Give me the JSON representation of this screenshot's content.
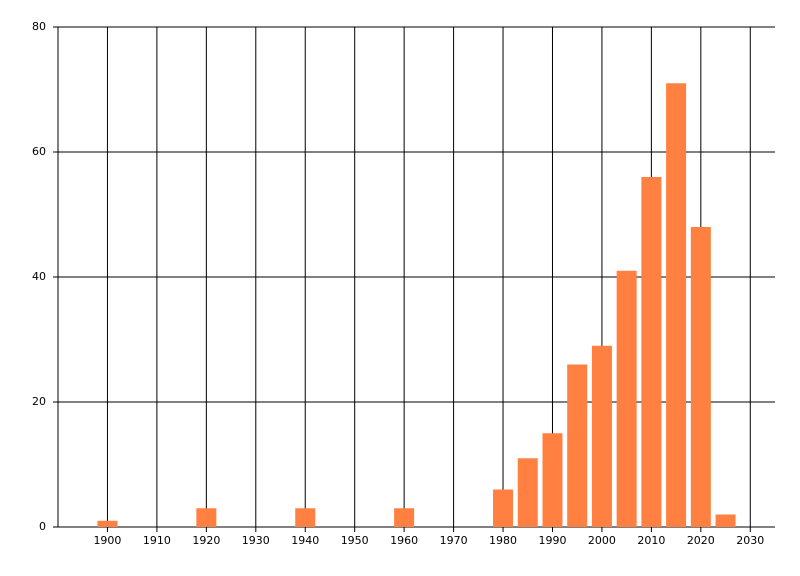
{
  "chart_data": {
    "type": "bar",
    "x": [
      1900,
      1920,
      1940,
      1960,
      1980,
      1985,
      1990,
      1995,
      2000,
      2005,
      2010,
      2015,
      2020,
      2025
    ],
    "values": [
      1,
      3,
      3,
      3,
      6,
      11,
      15,
      26,
      29,
      41,
      56,
      71,
      48,
      2
    ],
    "color": "#ff8040",
    "xlim": [
      1890,
      2035
    ],
    "xticks": [
      1900,
      1910,
      1920,
      1930,
      1940,
      1950,
      1960,
      1970,
      1980,
      1990,
      2000,
      2010,
      2020,
      2030
    ],
    "ylim": [
      0,
      80
    ],
    "yticks": [
      0,
      20,
      40,
      60,
      80
    ],
    "grid": true
  }
}
